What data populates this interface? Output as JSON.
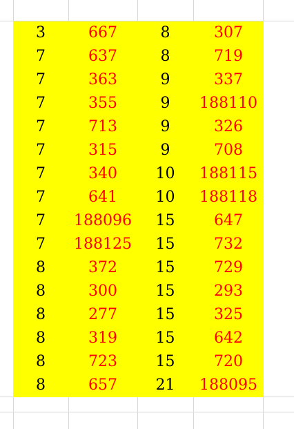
{
  "sheet": {
    "fill_color": "#ffff00",
    "grid_color": "#d8d8d8",
    "text_color_dark": "#000000",
    "text_color_red": "#ff0000",
    "rows": [
      [
        "3",
        "667",
        "8",
        "307"
      ],
      [
        "7",
        "637",
        "8",
        "719"
      ],
      [
        "7",
        "363",
        "9",
        "337"
      ],
      [
        "7",
        "355",
        "9",
        "188110"
      ],
      [
        "7",
        "713",
        "9",
        "326"
      ],
      [
        "7",
        "315",
        "9",
        "708"
      ],
      [
        "7",
        "340",
        "10",
        "188115"
      ],
      [
        "7",
        "641",
        "10",
        "188118"
      ],
      [
        "7",
        "188096",
        "15",
        "647"
      ],
      [
        "7",
        "188125",
        "15",
        "732"
      ],
      [
        "8",
        "372",
        "15",
        "729"
      ],
      [
        "8",
        "300",
        "15",
        "293"
      ],
      [
        "8",
        "277",
        "15",
        "325"
      ],
      [
        "8",
        "319",
        "15",
        "642"
      ],
      [
        "8",
        "723",
        "15",
        "720"
      ],
      [
        "8",
        "657",
        "21",
        "188095"
      ]
    ]
  }
}
